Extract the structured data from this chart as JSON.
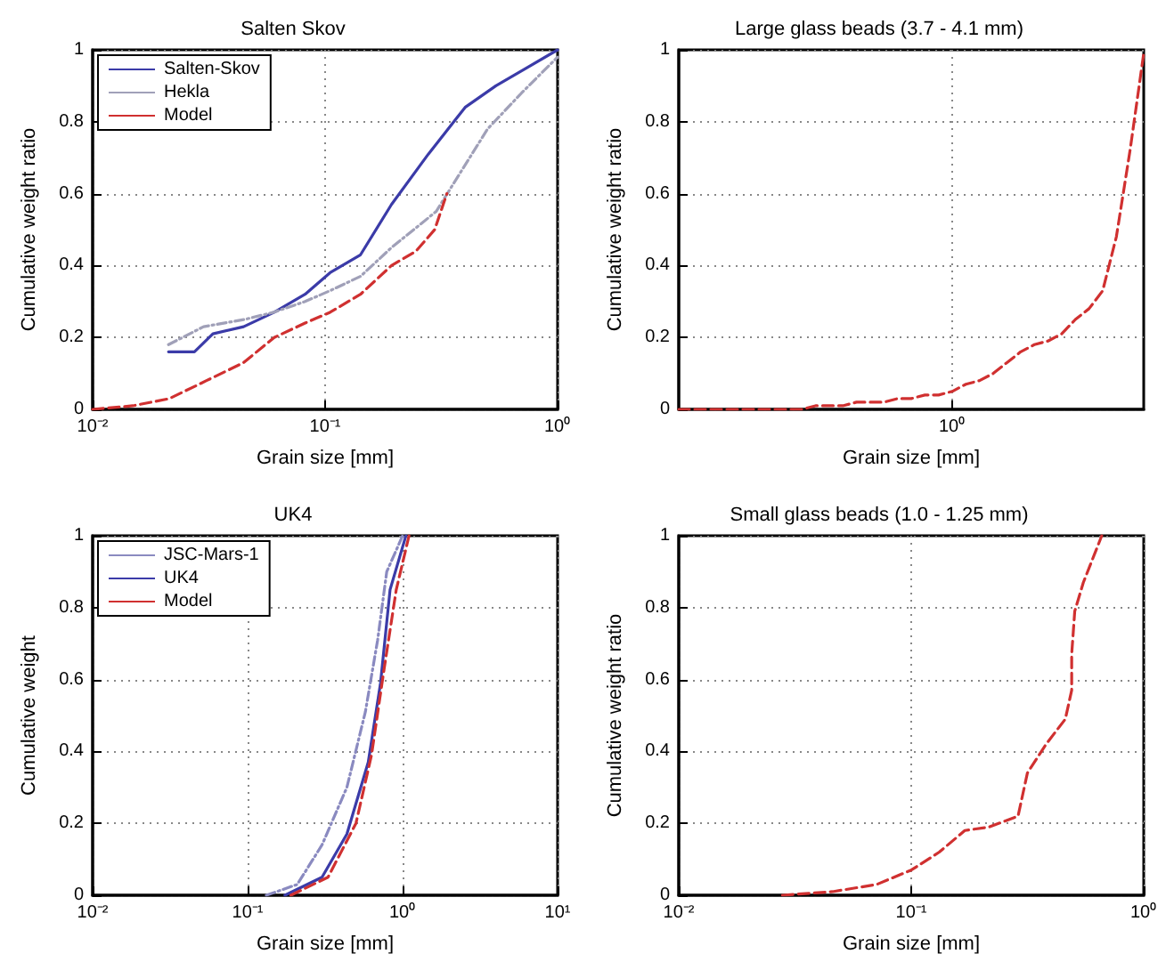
{
  "chart_data": [
    {
      "type": "line",
      "title": "Salten Skov",
      "xlabel": "Grain size [mm]",
      "ylabel": "Cumulative weight ratio",
      "log": "x",
      "grid": true,
      "legend": "top left",
      "xlim": [
        0.01,
        1
      ],
      "xticks": [
        {
          "value": 0.01,
          "label": "10⁻²"
        },
        {
          "value": 0.1,
          "label": "10⁻¹"
        },
        {
          "value": 1,
          "label": "10⁰"
        }
      ],
      "ylim": [
        0,
        1
      ],
      "yticks": [
        0,
        0.2,
        0.4,
        0.6,
        0.8,
        1
      ],
      "series": [
        {
          "name": "Salten-Skov",
          "color": "#3b3ba8",
          "line_style": "solid",
          "x": [
            0.0212,
            0.0274,
            0.0329,
            0.0446,
            0.0604,
            0.082,
            0.105,
            0.142,
            0.193,
            0.278,
            0.4,
            0.543,
            0.738,
            1.0
          ],
          "values": [
            0.16,
            0.16,
            0.21,
            0.23,
            0.27,
            0.32,
            0.38,
            0.43,
            0.57,
            0.71,
            0.84,
            0.9,
            0.95,
            1.0
          ]
        },
        {
          "name": "Hekla",
          "color": "#a0a0b8",
          "line_style": "dotted",
          "x": [
            0.0212,
            0.03,
            0.045,
            0.06,
            0.082,
            0.105,
            0.142,
            0.193,
            0.3,
            0.5,
            0.7,
            1.0
          ],
          "values": [
            0.18,
            0.23,
            0.25,
            0.27,
            0.3,
            0.33,
            0.37,
            0.45,
            0.55,
            0.78,
            0.88,
            0.98
          ]
        },
        {
          "name": "Model",
          "color": "#d03030",
          "line_style": "dashed",
          "x": [
            0.01,
            0.0149,
            0.0214,
            0.0309,
            0.0446,
            0.0604,
            0.082,
            0.105,
            0.142,
            0.193,
            0.246,
            0.296,
            0.334
          ],
          "values": [
            0,
            0.01,
            0.03,
            0.08,
            0.13,
            0.2,
            0.24,
            0.27,
            0.32,
            0.4,
            0.44,
            0.5,
            0.6
          ]
        }
      ]
    },
    {
      "type": "line",
      "title": "Large glass beads (3.7 - 4.1 mm)",
      "xlabel": "Grain size [mm]",
      "ylabel": "Cumulative weight ratio",
      "grid": true,
      "categories": [
        null,
        null,
        null,
        null,
        null,
        null,
        null,
        null,
        null,
        null,
        null,
        null,
        null,
        null,
        null,
        null,
        null,
        null,
        null,
        null,
        "10⁰",
        null,
        null,
        null,
        null,
        null,
        null,
        null,
        null,
        null,
        null,
        null,
        null,
        null,
        null
      ],
      "ylim": [
        0,
        1
      ],
      "yticks": [
        0,
        0.2,
        0.4,
        0.6,
        0.8,
        1
      ],
      "series": [
        {
          "color": "#d03030",
          "line_style": "dashed",
          "values": [
            0,
            0,
            0,
            0,
            0,
            0,
            0,
            0,
            0,
            0,
            0.01,
            0.01,
            0.01,
            0.02,
            0.02,
            0.02,
            0.03,
            0.03,
            0.04,
            0.04,
            0.05,
            0.07,
            0.08,
            0.1,
            0.13,
            0.16,
            0.18,
            0.19,
            0.21,
            0.25,
            0.28,
            0.33,
            0.48,
            0.72,
            0.99
          ]
        }
      ]
    },
    {
      "type": "line",
      "title": "UK4",
      "xlabel": "Grain size [mm]",
      "ylabel": "Cumulative weight",
      "log": "x",
      "grid": true,
      "legend": "top left",
      "xlim": [
        0.01,
        10
      ],
      "xticks": [
        {
          "value": 0.01,
          "label": "10⁻²"
        },
        {
          "value": 0.1,
          "label": "10⁻¹"
        },
        {
          "value": 1,
          "label": "10⁰"
        },
        {
          "value": 10,
          "label": "10¹"
        }
      ],
      "ylim": [
        0,
        1
      ],
      "yticks": [
        0,
        0.2,
        0.4,
        0.6,
        0.8,
        1
      ],
      "series": [
        {
          "name": "JSC-Mars-1",
          "color": "#8a8ac0",
          "line_style": "dotted",
          "x": [
            0.132,
            0.209,
            0.302,
            0.437,
            0.575,
            0.69,
            0.79,
            1.0
          ],
          "values": [
            0,
            0.03,
            0.14,
            0.3,
            0.51,
            0.71,
            0.9,
            1.0
          ]
        },
        {
          "name": "UK4",
          "color": "#3b3ba8",
          "line_style": "solid",
          "x": [
            0.174,
            0.302,
            0.437,
            0.6,
            0.72,
            0.83,
            1.05
          ],
          "values": [
            0,
            0.05,
            0.17,
            0.37,
            0.59,
            0.85,
            1.0
          ]
        },
        {
          "name": "Model",
          "color": "#d03030",
          "line_style": "dashed",
          "x": [
            0.19,
            0.33,
            0.5,
            0.63,
            0.76,
            0.91,
            1.1
          ],
          "values": [
            0,
            0.05,
            0.2,
            0.39,
            0.63,
            0.85,
            1.0
          ]
        }
      ]
    },
    {
      "type": "line",
      "title": "Small glass beads (1.0 - 1.25 mm)",
      "xlabel": "Grain size [mm]",
      "ylabel": "Cumulative weight ratio",
      "log": "x",
      "grid": true,
      "xlim": [
        0.01,
        1
      ],
      "xticks": [
        {
          "value": 0.01,
          "label": "10⁻²"
        },
        {
          "value": 0.1,
          "label": "10⁻¹"
        },
        {
          "value": 1,
          "label": "10⁰"
        }
      ],
      "ylim": [
        0,
        1
      ],
      "yticks": [
        0,
        0.2,
        0.4,
        0.6,
        0.8,
        1
      ],
      "series": [
        {
          "color": "#d03030",
          "line_style": "dashed",
          "x": [
            0.0279,
            0.0459,
            0.071,
            0.1,
            0.132,
            0.17,
            0.217,
            0.288,
            0.316,
            0.38,
            0.46,
            0.49,
            0.49,
            0.505,
            0.55,
            0.66
          ],
          "values": [
            0,
            0.01,
            0.03,
            0.07,
            0.12,
            0.18,
            0.19,
            0.22,
            0.34,
            0.42,
            0.49,
            0.57,
            0.67,
            0.79,
            0.87,
            1.0
          ]
        }
      ]
    }
  ]
}
